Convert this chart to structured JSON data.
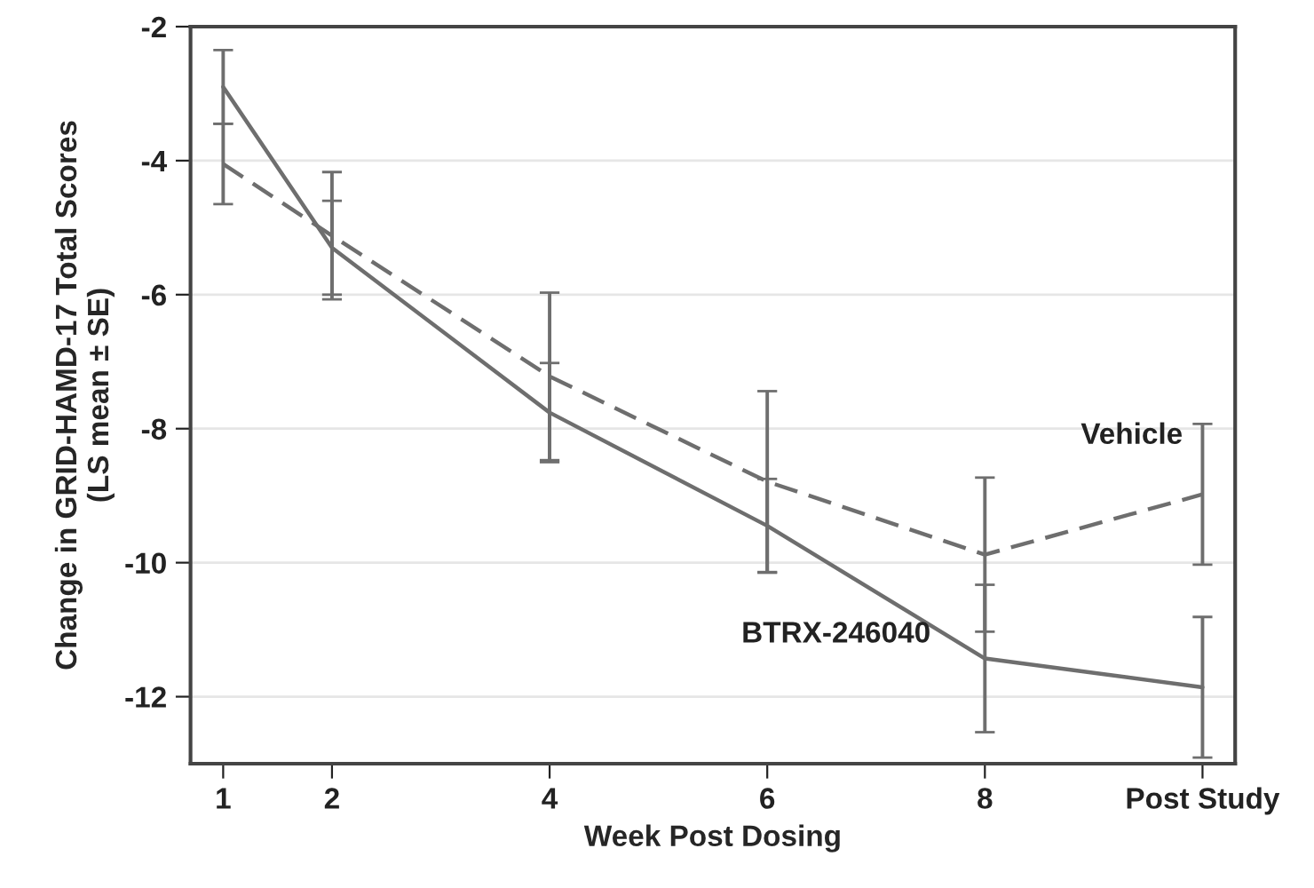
{
  "chart_data": {
    "type": "line",
    "xlabel": "Week Post Dosing",
    "ylabel": "Change in GRID-HAMD-17 Total Scores\n(LS mean ± SE)",
    "x": [
      1,
      2,
      4,
      6,
      8,
      10
    ],
    "series": [
      {
        "name": "BTRX-246040",
        "color": "#6e6e6e",
        "line_style": "solid",
        "values": [
          -2.9,
          -5.3,
          -7.76,
          -9.45,
          -11.43,
          -11.86
        ],
        "errors": [
          0.55,
          0.7,
          0.74,
          0.7,
          1.1,
          1.05
        ]
      },
      {
        "name": "Vehicle",
        "color": "#6e6e6e",
        "line_style": "dashed",
        "values": [
          -4.05,
          -5.12,
          -7.22,
          -8.79,
          -9.88,
          -8.98
        ],
        "errors": [
          0.6,
          0.95,
          1.25,
          1.35,
          1.15,
          1.05
        ]
      }
    ],
    "xlim": [
      0.7,
      10.3
    ],
    "xticks": [
      1,
      2,
      4,
      6,
      8,
      {
        "value": 10,
        "label": "Post Study"
      }
    ],
    "ylim": [
      -13,
      -2
    ],
    "yticks": [
      -2,
      -4,
      -6,
      -8,
      -10,
      -12
    ],
    "grid": "y",
    "legend": false,
    "marker": "none"
  }
}
